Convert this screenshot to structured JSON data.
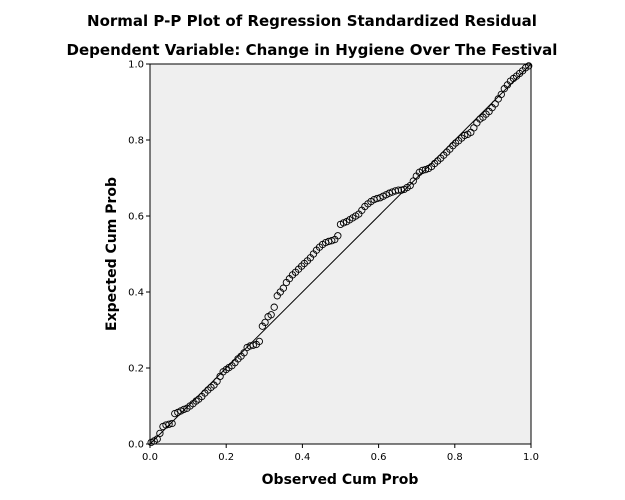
{
  "chart_data": {
    "type": "scatter",
    "title": "Normal P-P Plot of Regression Standardized Residual",
    "subtitle": "Dependent Variable: Change in Hygiene Over The Festival",
    "xlabel": "Observed Cum Prob",
    "ylabel": "Expected Cum Prob",
    "xlim": [
      0,
      1
    ],
    "ylim": [
      0,
      1
    ],
    "x_ticks": [
      "0.0",
      "0.2",
      "0.4",
      "0.6",
      "0.8",
      "1.0"
    ],
    "y_ticks": [
      "0.0",
      "0.2",
      "0.4",
      "0.6",
      "0.8",
      "1.0"
    ],
    "grid": false,
    "plot_background": "#efefef",
    "reference_line": {
      "from": [
        0,
        0
      ],
      "to": [
        1,
        1
      ]
    },
    "points": [
      [
        0.003,
        0.004
      ],
      [
        0.011,
        0.008
      ],
      [
        0.019,
        0.013
      ],
      [
        0.026,
        0.028
      ],
      [
        0.034,
        0.046
      ],
      [
        0.042,
        0.05
      ],
      [
        0.05,
        0.052
      ],
      [
        0.058,
        0.054
      ],
      [
        0.065,
        0.08
      ],
      [
        0.073,
        0.083
      ],
      [
        0.081,
        0.087
      ],
      [
        0.089,
        0.091
      ],
      [
        0.097,
        0.094
      ],
      [
        0.105,
        0.1
      ],
      [
        0.113,
        0.106
      ],
      [
        0.121,
        0.113
      ],
      [
        0.128,
        0.118
      ],
      [
        0.136,
        0.125
      ],
      [
        0.144,
        0.134
      ],
      [
        0.152,
        0.142
      ],
      [
        0.16,
        0.149
      ],
      [
        0.168,
        0.155
      ],
      [
        0.176,
        0.165
      ],
      [
        0.184,
        0.178
      ],
      [
        0.192,
        0.19
      ],
      [
        0.2,
        0.196
      ],
      [
        0.207,
        0.201
      ],
      [
        0.215,
        0.206
      ],
      [
        0.223,
        0.214
      ],
      [
        0.231,
        0.224
      ],
      [
        0.239,
        0.231
      ],
      [
        0.247,
        0.24
      ],
      [
        0.255,
        0.254
      ],
      [
        0.263,
        0.258
      ],
      [
        0.271,
        0.26
      ],
      [
        0.279,
        0.262
      ],
      [
        0.287,
        0.27
      ],
      [
        0.295,
        0.31
      ],
      [
        0.302,
        0.32
      ],
      [
        0.31,
        0.335
      ],
      [
        0.318,
        0.34
      ],
      [
        0.326,
        0.36
      ],
      [
        0.334,
        0.39
      ],
      [
        0.342,
        0.4
      ],
      [
        0.35,
        0.41
      ],
      [
        0.358,
        0.425
      ],
      [
        0.366,
        0.435
      ],
      [
        0.374,
        0.445
      ],
      [
        0.382,
        0.452
      ],
      [
        0.39,
        0.46
      ],
      [
        0.398,
        0.468
      ],
      [
        0.405,
        0.475
      ],
      [
        0.413,
        0.482
      ],
      [
        0.421,
        0.49
      ],
      [
        0.429,
        0.5
      ],
      [
        0.437,
        0.51
      ],
      [
        0.445,
        0.518
      ],
      [
        0.453,
        0.525
      ],
      [
        0.461,
        0.53
      ],
      [
        0.469,
        0.533
      ],
      [
        0.477,
        0.535
      ],
      [
        0.485,
        0.538
      ],
      [
        0.493,
        0.548
      ],
      [
        0.5,
        0.578
      ],
      [
        0.508,
        0.582
      ],
      [
        0.516,
        0.585
      ],
      [
        0.524,
        0.59
      ],
      [
        0.532,
        0.595
      ],
      [
        0.54,
        0.6
      ],
      [
        0.548,
        0.605
      ],
      [
        0.556,
        0.615
      ],
      [
        0.564,
        0.625
      ],
      [
        0.572,
        0.632
      ],
      [
        0.58,
        0.638
      ],
      [
        0.588,
        0.643
      ],
      [
        0.596,
        0.646
      ],
      [
        0.604,
        0.648
      ],
      [
        0.612,
        0.652
      ],
      [
        0.62,
        0.656
      ],
      [
        0.628,
        0.66
      ],
      [
        0.636,
        0.663
      ],
      [
        0.644,
        0.666
      ],
      [
        0.652,
        0.668
      ],
      [
        0.66,
        0.668
      ],
      [
        0.667,
        0.67
      ],
      [
        0.675,
        0.675
      ],
      [
        0.683,
        0.68
      ],
      [
        0.691,
        0.692
      ],
      [
        0.699,
        0.705
      ],
      [
        0.707,
        0.715
      ],
      [
        0.715,
        0.72
      ],
      [
        0.723,
        0.722
      ],
      [
        0.731,
        0.725
      ],
      [
        0.739,
        0.73
      ],
      [
        0.747,
        0.738
      ],
      [
        0.755,
        0.745
      ],
      [
        0.763,
        0.752
      ],
      [
        0.771,
        0.76
      ],
      [
        0.779,
        0.768
      ],
      [
        0.787,
        0.776
      ],
      [
        0.795,
        0.785
      ],
      [
        0.802,
        0.792
      ],
      [
        0.81,
        0.798
      ],
      [
        0.818,
        0.805
      ],
      [
        0.826,
        0.812
      ],
      [
        0.834,
        0.815
      ],
      [
        0.842,
        0.82
      ],
      [
        0.85,
        0.832
      ],
      [
        0.858,
        0.845
      ],
      [
        0.866,
        0.855
      ],
      [
        0.874,
        0.86
      ],
      [
        0.882,
        0.868
      ],
      [
        0.89,
        0.875
      ],
      [
        0.898,
        0.885
      ],
      [
        0.906,
        0.895
      ],
      [
        0.914,
        0.908
      ],
      [
        0.922,
        0.92
      ],
      [
        0.93,
        0.935
      ],
      [
        0.938,
        0.945
      ],
      [
        0.946,
        0.955
      ],
      [
        0.954,
        0.962
      ],
      [
        0.962,
        0.968
      ],
      [
        0.97,
        0.975
      ],
      [
        0.978,
        0.982
      ],
      [
        0.986,
        0.99
      ],
      [
        0.994,
        0.995
      ]
    ]
  }
}
